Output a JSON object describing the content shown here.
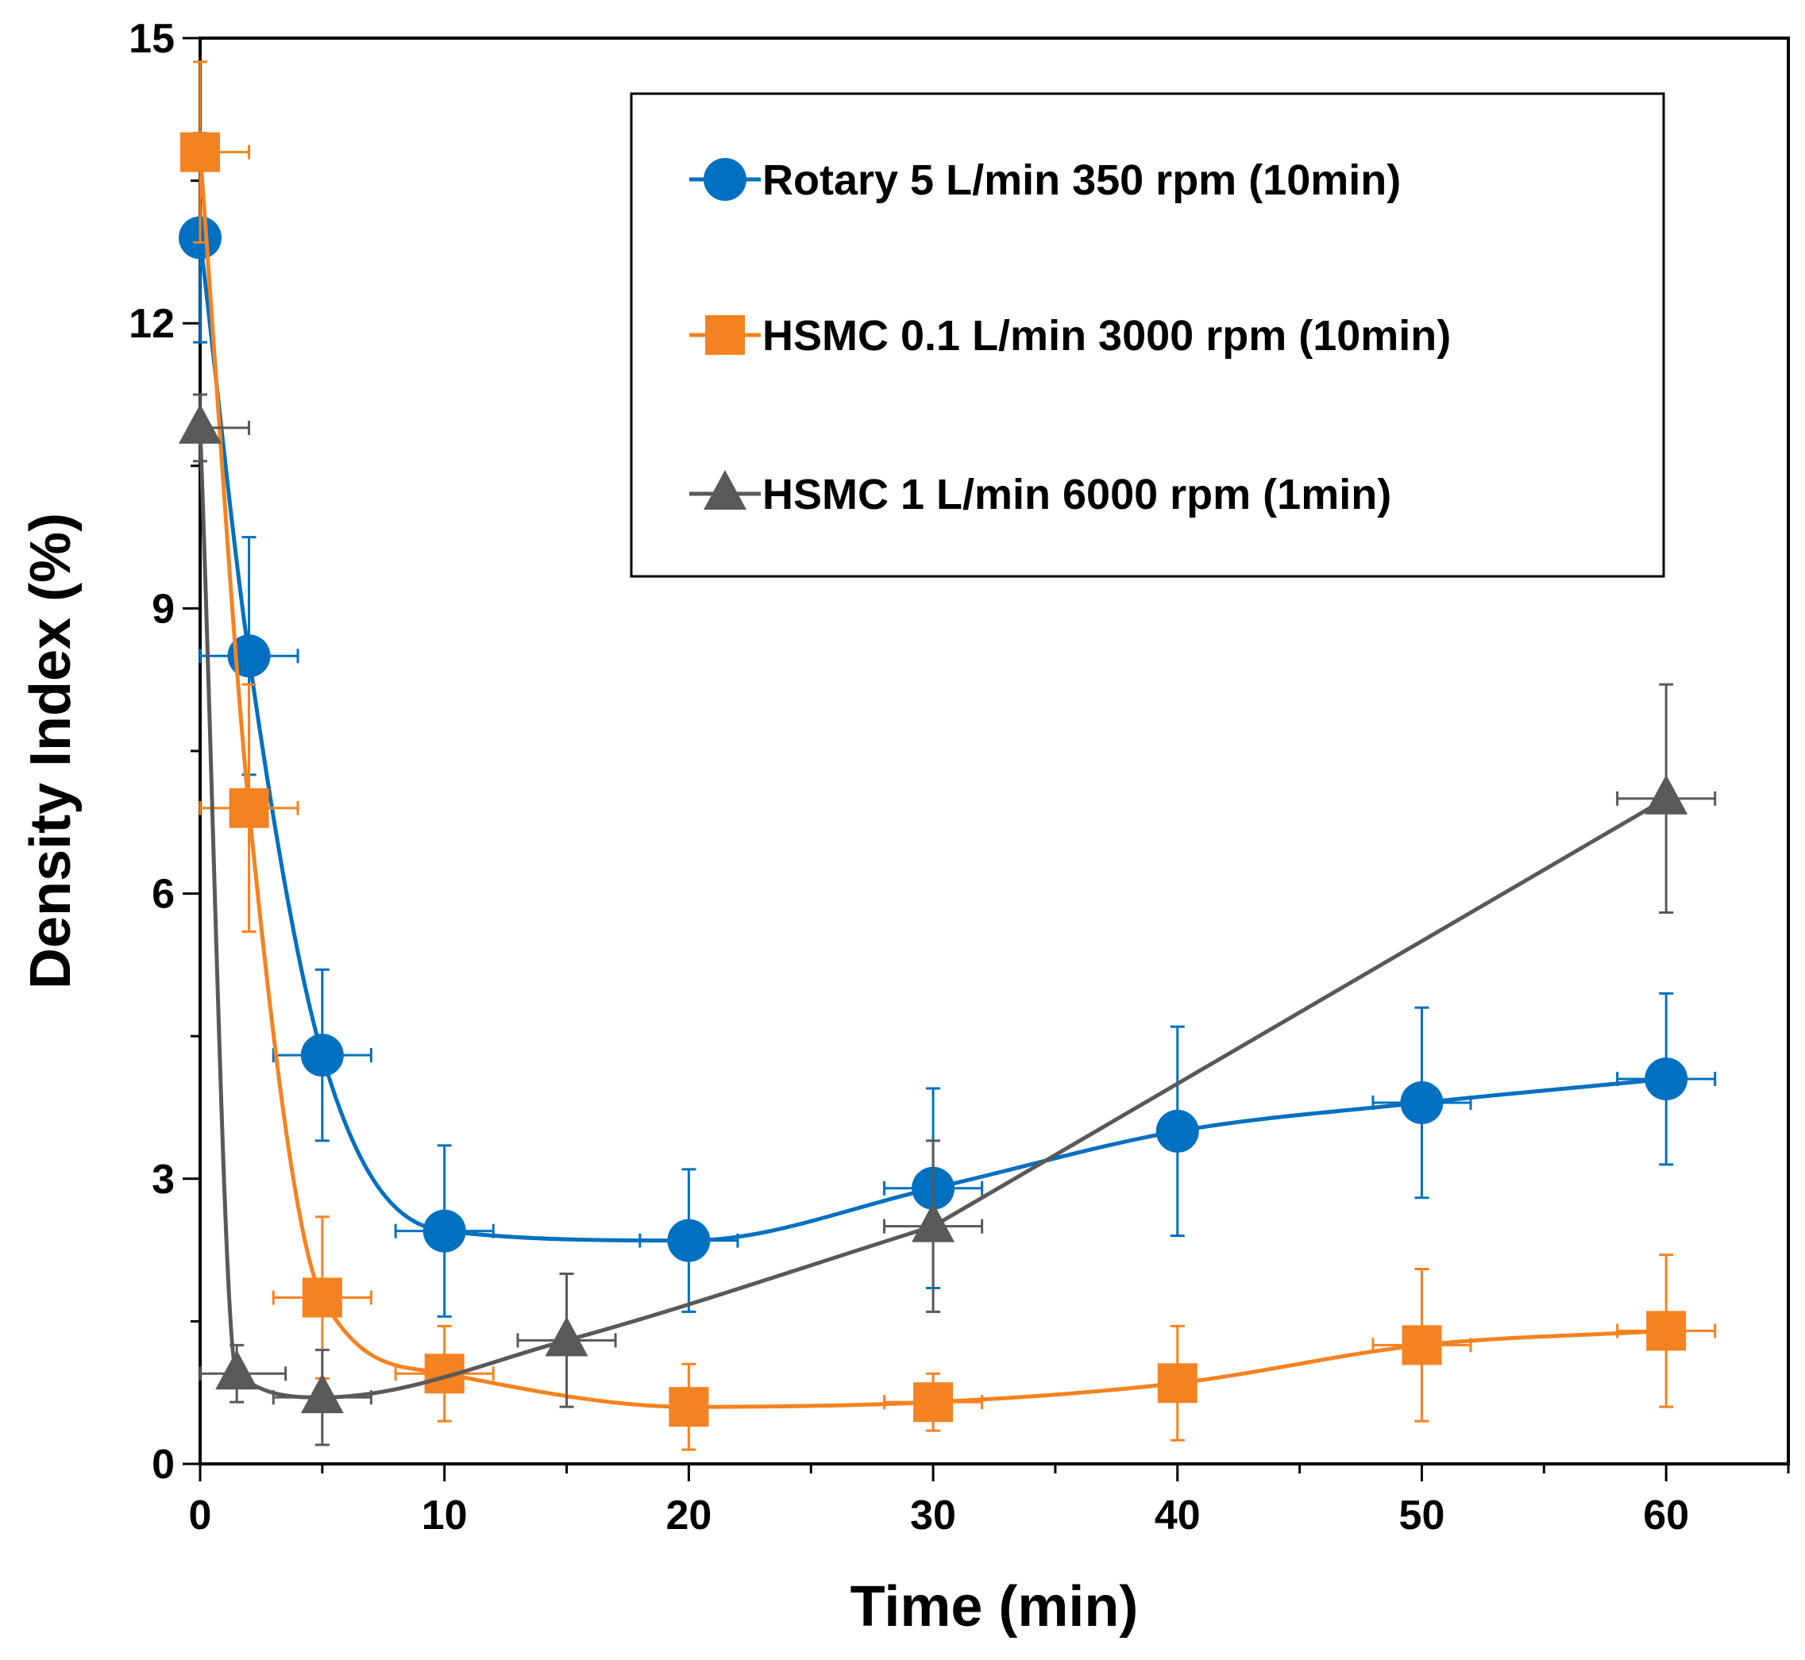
{
  "chart_data": {
    "type": "scatter",
    "title": "",
    "xlabel": "Time (min)",
    "ylabel": "Density Index (%)",
    "xlim": [
      0,
      65
    ],
    "ylim": [
      0,
      15
    ],
    "xticks": [
      0,
      10,
      20,
      30,
      40,
      50,
      60
    ],
    "yticks": [
      0,
      3,
      6,
      9,
      12,
      15
    ],
    "grid": false,
    "legend_position": "top-right",
    "series": [
      {
        "name": "Rotary 5 L/min 350 rpm (10min)",
        "color": "#0070C0",
        "marker": "circle",
        "x": [
          0,
          2,
          5,
          10,
          20,
          30,
          40,
          50,
          60
        ],
        "y": [
          12.9,
          8.5,
          4.3,
          2.45,
          2.35,
          2.9,
          3.5,
          3.8,
          4.05
        ],
        "y_err": [
          1.1,
          1.25,
          0.9,
          0.9,
          0.75,
          1.05,
          1.1,
          1.0,
          0.9
        ],
        "x_err": [
          0.7,
          2.0,
          2.0,
          2.0,
          2.0,
          2.0,
          0.7,
          2.0,
          2.0
        ]
      },
      {
        "name": "HSMC 0.1 L/min 3000 rpm (10min)",
        "color": "#F58220",
        "marker": "square",
        "x": [
          0,
          2,
          5,
          10,
          20,
          30,
          40,
          50,
          60
        ],
        "y": [
          13.8,
          6.9,
          1.75,
          0.95,
          0.6,
          0.65,
          0.85,
          1.25,
          1.4
        ],
        "y_err": [
          0.95,
          1.3,
          0.85,
          0.5,
          0.45,
          0.3,
          0.6,
          0.8,
          0.8
        ],
        "x_err": [
          2.0,
          2.0,
          2.0,
          2.0,
          0.5,
          2.0,
          0.7,
          2.0,
          2.0
        ]
      },
      {
        "name": "HSMC 1 L/min 6000 rpm (1min)",
        "color": "#595959",
        "marker": "triangle",
        "x": [
          0,
          1.5,
          5,
          15,
          30,
          60
        ],
        "y": [
          10.9,
          0.95,
          0.7,
          1.3,
          2.5,
          7.0
        ],
        "y_err": [
          0.35,
          0.3,
          0.5,
          0.7,
          0.9,
          1.2
        ],
        "x_err": [
          2.0,
          2.0,
          2.0,
          2.0,
          2.0,
          2.0
        ]
      }
    ]
  }
}
